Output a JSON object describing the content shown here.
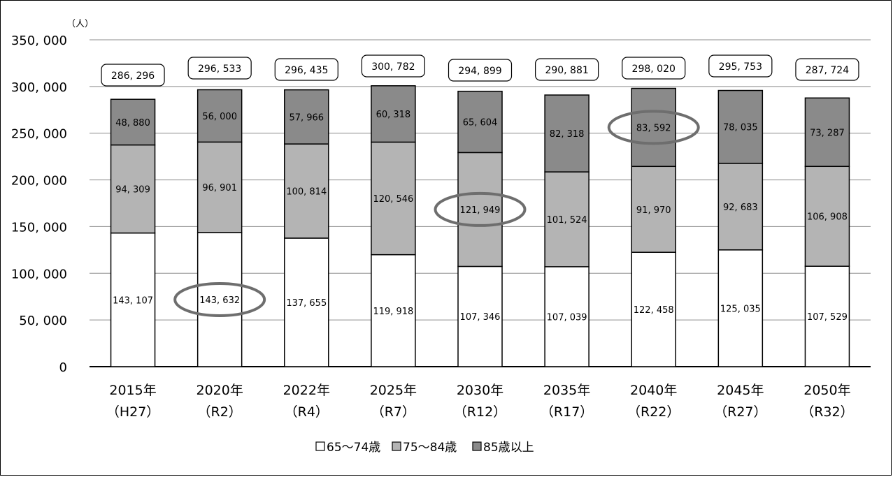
{
  "chart_data": {
    "type": "bar",
    "stacked": true,
    "unit": "（人）",
    "categories": [
      "2015年",
      "2020年",
      "2022年",
      "2025年",
      "2030年",
      "2035年",
      "2040年",
      "2045年",
      "2050年"
    ],
    "category_sublabels": [
      "（H27）",
      "（R2）",
      "（R4）",
      "（R7）",
      "（R12）",
      "（R17）",
      "（R22）",
      "（R27）",
      "（R32）"
    ],
    "series": [
      {
        "name": "65～74歳",
        "color": "#ffffff",
        "values": [
          143107,
          143632,
          137655,
          119918,
          107346,
          107039,
          122458,
          125035,
          107529
        ],
        "labels": [
          "143, 107",
          "143, 632",
          "137, 655",
          "119, 918",
          "107, 346",
          "107, 039",
          "122, 458",
          "125, 035",
          "107, 529"
        ]
      },
      {
        "name": "75～84歳",
        "color": "#b4b4b4",
        "values": [
          94309,
          96901,
          100814,
          120546,
          121949,
          101524,
          91970,
          92683,
          106908
        ],
        "labels": [
          "94, 309",
          "96, 901",
          "100, 814",
          "120, 546",
          "121, 949",
          "101, 524",
          "91, 970",
          "92, 683",
          "106, 908"
        ]
      },
      {
        "name": "85歳以上",
        "color": "#8a8a8a",
        "values": [
          48880,
          56000,
          57966,
          60318,
          65604,
          82318,
          83592,
          78035,
          73287
        ],
        "labels": [
          "48, 880",
          "56, 000",
          "57, 966",
          "60, 318",
          "65, 604",
          "82, 318",
          "83, 592",
          "78, 035",
          "73, 287"
        ]
      }
    ],
    "totals": [
      286296,
      296533,
      296435,
      300782,
      294899,
      290881,
      298020,
      295753,
      287724
    ],
    "total_labels": [
      "286, 296",
      "296, 533",
      "296, 435",
      "300, 782",
      "294, 899",
      "290, 881",
      "298, 020",
      "295, 753",
      "287, 724"
    ],
    "ylim": [
      0,
      350000
    ],
    "yticks": [
      0,
      50000,
      100000,
      150000,
      200000,
      250000,
      300000,
      350000
    ],
    "ytick_labels": [
      "0",
      "50, 000",
      "100, 000",
      "150, 000",
      "200, 000",
      "250, 000",
      "300, 000",
      "350, 000"
    ],
    "legend_placement": "bottom-center",
    "grid": true,
    "highlights": [
      {
        "category": 1,
        "series": 0
      },
      {
        "category": 4,
        "series": 1
      },
      {
        "category": 6,
        "series": 2
      }
    ],
    "highlight_color": "#6e6e6e"
  }
}
